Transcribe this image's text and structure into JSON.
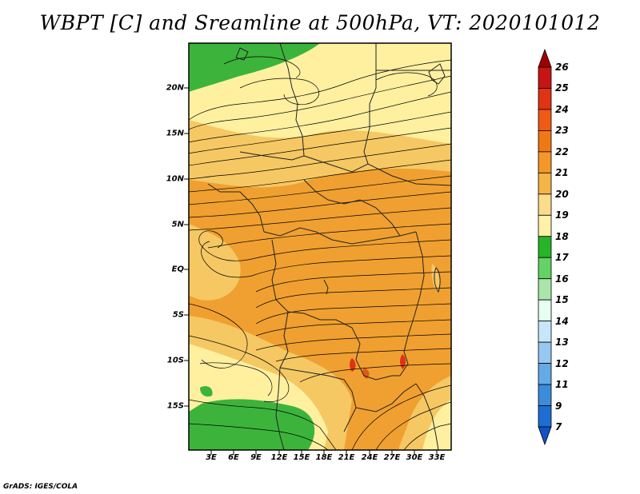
{
  "title": "WBPT [C] and Sreamline at 500hPa, VT: 2020101012",
  "credit": "GrADS: IGES/COLA",
  "map": {
    "lat_labels": [
      "20N",
      "15N",
      "10N",
      "5N",
      "EQ",
      "5S",
      "10S",
      "15S"
    ],
    "lon_labels": [
      "3E",
      "6E",
      "9E",
      "12E",
      "15E",
      "18E",
      "21E",
      "24E",
      "27E",
      "30E",
      "33E"
    ],
    "field": "wet bulb potential temperature at 500hPa with streamlines",
    "colors": {
      "land_green": "#3cb43c",
      "pale_yellow": "#fff0a0",
      "light_orange": "#f5c864",
      "orange": "#f0a030",
      "dark_orange": "#e08020"
    }
  },
  "colorbar": {
    "levels": [
      "26",
      "25",
      "24",
      "23",
      "22",
      "21",
      "20",
      "19",
      "18",
      "17",
      "16",
      "15",
      "14",
      "13",
      "12",
      "11",
      "9",
      "7"
    ],
    "colors": [
      "#a00000",
      "#c81414",
      "#e03214",
      "#f05a14",
      "#f07814",
      "#f59628",
      "#f5b446",
      "#fadc8c",
      "#fff0aa",
      "#28b428",
      "#64d264",
      "#aae6aa",
      "#e6fff0",
      "#c8e6fa",
      "#96c8f0",
      "#64aae6",
      "#3c8cdc",
      "#1e6ed2",
      "#1450c8"
    ]
  }
}
